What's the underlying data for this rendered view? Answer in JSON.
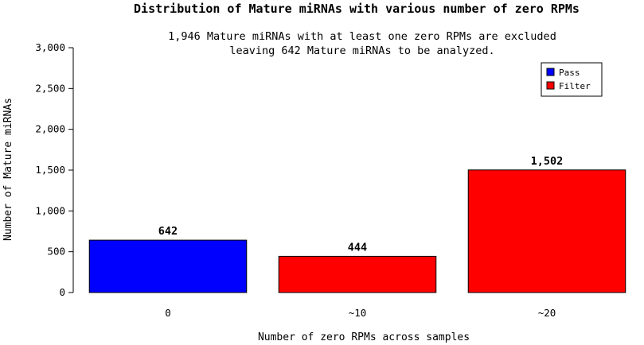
{
  "chart_data": {
    "type": "bar",
    "title": "Distribution of Mature miRNAs with various number of zero RPMs",
    "subtitle_lines": [
      "1,946 Mature miRNAs with at least one zero RPMs are excluded",
      "leaving 642 Mature miRNAs to be analyzed."
    ],
    "xlabel": "Number of zero RPMs across samples",
    "ylabel": "Number of Mature miRNAs",
    "categories": [
      "0",
      "~10",
      "~20"
    ],
    "values": [
      642,
      444,
      1502
    ],
    "value_labels": [
      "642",
      "444",
      "1,502"
    ],
    "bar_series": [
      "Pass",
      "Filter",
      "Filter"
    ],
    "ylim": [
      0,
      3000
    ],
    "yticks": [
      0,
      500,
      1000,
      1500,
      2000,
      2500,
      3000
    ],
    "ytick_labels": [
      "0",
      "500",
      "1,000",
      "1,500",
      "2,000",
      "2,500",
      "3,000"
    ],
    "grid": false,
    "legend": {
      "placement": "top-right",
      "entries": [
        {
          "name": "Pass",
          "color": "#0000ff"
        },
        {
          "name": "Filter",
          "color": "#ff0000"
        }
      ]
    },
    "colors": {
      "Pass": "#0000ff",
      "Filter": "#ff0000"
    }
  }
}
